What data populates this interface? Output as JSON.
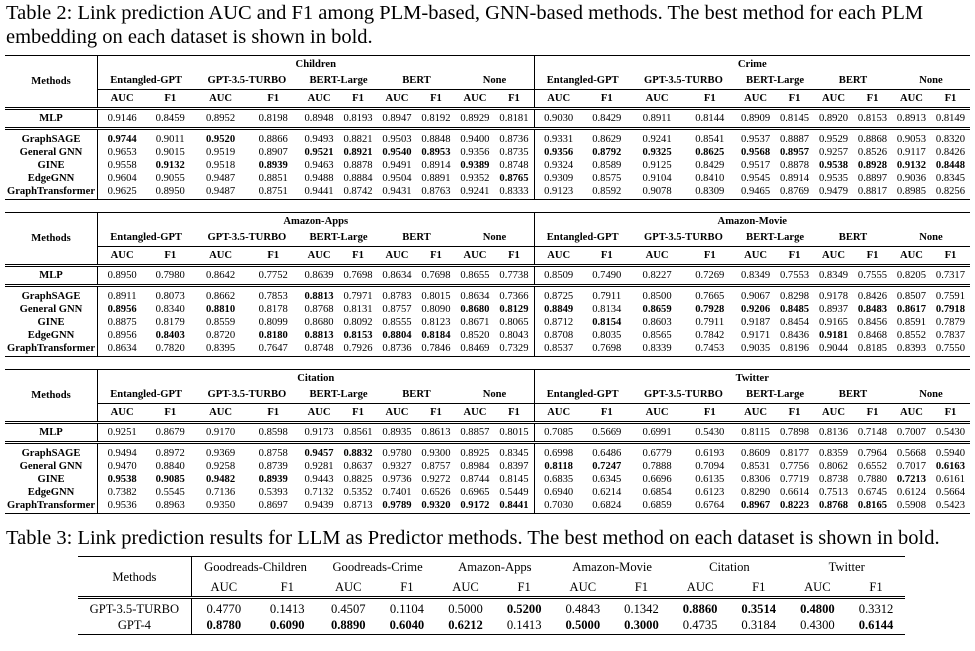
{
  "table2": {
    "caption_label": "Table 2:",
    "caption_text": "Link prediction AUC and F1 among PLM-based, GNN-based methods. The best method for each PLM embedding on each dataset is shown in bold.",
    "methods_header": "Methods",
    "embeddings": [
      "Entangled-GPT",
      "GPT-3.5-TURBO",
      "BERT-Large",
      "BERT",
      "None"
    ],
    "metrics": [
      "AUC",
      "F1"
    ],
    "blocks": [
      {
        "datasets": [
          "Children",
          "Crime"
        ],
        "rows": [
          {
            "method": "MLP",
            "values": [
              "0.9146",
              "0.8459",
              "0.8952",
              "0.8198",
              "0.8948",
              "0.8193",
              "0.8947",
              "0.8192",
              "0.8929",
              "0.8181",
              "0.9030",
              "0.8429",
              "0.8911",
              "0.8144",
              "0.8909",
              "0.8145",
              "0.8920",
              "0.8153",
              "0.8913",
              "0.8149"
            ],
            "bold": []
          },
          {
            "method": "GraphSAGE",
            "values": [
              "0.9744",
              "0.9011",
              "0.9520",
              "0.8866",
              "0.9493",
              "0.8821",
              "0.9503",
              "0.8848",
              "0.9400",
              "0.8736",
              "0.9331",
              "0.8629",
              "0.9241",
              "0.8541",
              "0.9537",
              "0.8887",
              "0.9529",
              "0.8868",
              "0.9053",
              "0.8320"
            ],
            "bold": [
              0,
              2
            ]
          },
          {
            "method": "General GNN",
            "values": [
              "0.9653",
              "0.9015",
              "0.9519",
              "0.8907",
              "0.9521",
              "0.8921",
              "0.9540",
              "0.8953",
              "0.9356",
              "0.8735",
              "0.9356",
              "0.8792",
              "0.9325",
              "0.8625",
              "0.9568",
              "0.8957",
              "0.9257",
              "0.8526",
              "0.9117",
              "0.8426"
            ],
            "bold": [
              4,
              5,
              6,
              7,
              10,
              11,
              12,
              13,
              14,
              15
            ]
          },
          {
            "method": "GINE",
            "values": [
              "0.9558",
              "0.9132",
              "0.9518",
              "0.8939",
              "0.9463",
              "0.8878",
              "0.9491",
              "0.8914",
              "0.9389",
              "0.8748",
              "0.9324",
              "0.8589",
              "0.9125",
              "0.8429",
              "0.9517",
              "0.8878",
              "0.9538",
              "0.8928",
              "0.9132",
              "0.8448"
            ],
            "bold": [
              1,
              3,
              8,
              16,
              17,
              18,
              19
            ]
          },
          {
            "method": "EdgeGNN",
            "values": [
              "0.9604",
              "0.9055",
              "0.9487",
              "0.8851",
              "0.9488",
              "0.8884",
              "0.9504",
              "0.8891",
              "0.9352",
              "0.8765",
              "0.9309",
              "0.8575",
              "0.9104",
              "0.8410",
              "0.9545",
              "0.8914",
              "0.9535",
              "0.8897",
              "0.9036",
              "0.8345"
            ],
            "bold": [
              9
            ]
          },
          {
            "method": "GraphTransformer",
            "values": [
              "0.9625",
              "0.8950",
              "0.9487",
              "0.8751",
              "0.9441",
              "0.8742",
              "0.9431",
              "0.8763",
              "0.9241",
              "0.8333",
              "0.9123",
              "0.8592",
              "0.9078",
              "0.8309",
              "0.9465",
              "0.8769",
              "0.9479",
              "0.8817",
              "0.8985",
              "0.8256"
            ],
            "bold": []
          }
        ]
      },
      {
        "datasets": [
          "Amazon-Apps",
          "Amazon-Movie"
        ],
        "rows": [
          {
            "method": "MLP",
            "values": [
              "0.8950",
              "0.7980",
              "0.8642",
              "0.7752",
              "0.8639",
              "0.7698",
              "0.8634",
              "0.7698",
              "0.8655",
              "0.7738",
              "0.8509",
              "0.7490",
              "0.8227",
              "0.7269",
              "0.8349",
              "0.7553",
              "0.8349",
              "0.7555",
              "0.8205",
              "0.7317"
            ],
            "bold": []
          },
          {
            "method": "GraphSAGE",
            "values": [
              "0.8911",
              "0.8073",
              "0.8662",
              "0.7853",
              "0.8813",
              "0.7971",
              "0.8783",
              "0.8015",
              "0.8634",
              "0.7366",
              "0.8725",
              "0.7911",
              "0.8500",
              "0.7665",
              "0.9067",
              "0.8298",
              "0.9178",
              "0.8426",
              "0.8507",
              "0.7591"
            ],
            "bold": [
              4
            ]
          },
          {
            "method": "General GNN",
            "values": [
              "0.8956",
              "0.8340",
              "0.8810",
              "0.8178",
              "0.8768",
              "0.8131",
              "0.8757",
              "0.8090",
              "0.8680",
              "0.8129",
              "0.8849",
              "0.8134",
              "0.8659",
              "0.7928",
              "0.9206",
              "0.8485",
              "0.8937",
              "0.8483",
              "0.8617",
              "0.7918"
            ],
            "bold": [
              0,
              2,
              8,
              9,
              10,
              12,
              13,
              14,
              15,
              17,
              18,
              19
            ]
          },
          {
            "method": "GINE",
            "values": [
              "0.8875",
              "0.8179",
              "0.8559",
              "0.8099",
              "0.8680",
              "0.8092",
              "0.8555",
              "0.8123",
              "0.8671",
              "0.8065",
              "0.8712",
              "0.8154",
              "0.8603",
              "0.7911",
              "0.9187",
              "0.8454",
              "0.9165",
              "0.8456",
              "0.8591",
              "0.7879"
            ],
            "bold": [
              11
            ]
          },
          {
            "method": "EdgeGNN",
            "values": [
              "0.8956",
              "0.8403",
              "0.8720",
              "0.8180",
              "0.8813",
              "0.8153",
              "0.8804",
              "0.8184",
              "0.8520",
              "0.8043",
              "0.8708",
              "0.8035",
              "0.8565",
              "0.7842",
              "0.9171",
              "0.8436",
              "0.9181",
              "0.8468",
              "0.8552",
              "0.7837"
            ],
            "bold": [
              1,
              3,
              4,
              5,
              6,
              7,
              16
            ]
          },
          {
            "method": "GraphTransformer",
            "values": [
              "0.8634",
              "0.7820",
              "0.8395",
              "0.7647",
              "0.8748",
              "0.7926",
              "0.8736",
              "0.7846",
              "0.8469",
              "0.7329",
              "0.8537",
              "0.7698",
              "0.8339",
              "0.7453",
              "0.9035",
              "0.8196",
              "0.9044",
              "0.8185",
              "0.8393",
              "0.7550"
            ],
            "bold": []
          }
        ]
      },
      {
        "datasets": [
          "Citation",
          "Twitter"
        ],
        "rows": [
          {
            "method": "MLP",
            "values": [
              "0.9251",
              "0.8679",
              "0.9170",
              "0.8598",
              "0.9173",
              "0.8561",
              "0.8935",
              "0.8613",
              "0.8857",
              "0.8015",
              "0.7085",
              "0.5669",
              "0.6991",
              "0.5430",
              "0.8115",
              "0.7898",
              "0.8136",
              "0.7148",
              "0.7007",
              "0.5430"
            ],
            "bold": []
          },
          {
            "method": "GraphSAGE",
            "values": [
              "0.9494",
              "0.8972",
              "0.9369",
              "0.8758",
              "0.9457",
              "0.8832",
              "0.9780",
              "0.9300",
              "0.8925",
              "0.8345",
              "0.6998",
              "0.6486",
              "0.6779",
              "0.6193",
              "0.8609",
              "0.8177",
              "0.8359",
              "0.7964",
              "0.5668",
              "0.5940"
            ],
            "bold": [
              4,
              5
            ]
          },
          {
            "method": "General GNN",
            "values": [
              "0.9470",
              "0.8840",
              "0.9258",
              "0.8739",
              "0.9281",
              "0.8637",
              "0.9327",
              "0.8757",
              "0.8984",
              "0.8397",
              "0.8118",
              "0.7247",
              "0.7888",
              "0.7094",
              "0.8531",
              "0.7756",
              "0.8062",
              "0.6552",
              "0.7017",
              "0.6163"
            ],
            "bold": [
              10,
              11,
              19
            ]
          },
          {
            "method": "GINE",
            "values": [
              "0.9538",
              "0.9085",
              "0.9482",
              "0.8939",
              "0.9443",
              "0.8825",
              "0.9736",
              "0.9272",
              "0.8744",
              "0.8145",
              "0.6835",
              "0.6345",
              "0.6696",
              "0.6135",
              "0.8306",
              "0.7719",
              "0.8738",
              "0.7880",
              "0.7213",
              "0.6161"
            ],
            "bold": [
              0,
              1,
              2,
              3,
              18
            ]
          },
          {
            "method": "EdgeGNN",
            "values": [
              "0.7382",
              "0.5545",
              "0.7136",
              "0.5393",
              "0.7132",
              "0.5352",
              "0.7401",
              "0.6526",
              "0.6965",
              "0.5449",
              "0.6940",
              "0.6214",
              "0.6854",
              "0.6123",
              "0.8290",
              "0.6614",
              "0.7513",
              "0.6745",
              "0.6124",
              "0.5664"
            ],
            "bold": []
          },
          {
            "method": "GraphTransformer",
            "values": [
              "0.9536",
              "0.8963",
              "0.9350",
              "0.8697",
              "0.9439",
              "0.8713",
              "0.9789",
              "0.9320",
              "0.9172",
              "0.8441",
              "0.7030",
              "0.6824",
              "0.6859",
              "0.6764",
              "0.8967",
              "0.8223",
              "0.8768",
              "0.8165",
              "0.5908",
              "0.5423"
            ],
            "bold": [
              6,
              7,
              8,
              9,
              14,
              15,
              16,
              17
            ]
          }
        ]
      }
    ]
  },
  "table3": {
    "caption_label": "Table 3:",
    "caption_text": "Link prediction results for LLM as Predictor methods. The best method on each dataset is shown in bold.",
    "methods_header": "Methods",
    "datasets": [
      "Goodreads-Children",
      "Goodreads-Crime",
      "Amazon-Apps",
      "Amazon-Movie",
      "Citation",
      "Twitter"
    ],
    "metrics": [
      "AUC",
      "F1"
    ],
    "rows": [
      {
        "method": "GPT-3.5-TURBO",
        "values": [
          "0.4770",
          "0.1413",
          "0.4507",
          "0.1104",
          "0.5000",
          "0.5200",
          "0.4843",
          "0.1342",
          "0.8860",
          "0.3514",
          "0.4800",
          "0.3312"
        ],
        "bold": [
          5,
          8,
          9,
          10
        ]
      },
      {
        "method": "GPT-4",
        "values": [
          "0.8780",
          "0.6090",
          "0.8890",
          "0.6040",
          "0.6212",
          "0.1413",
          "0.5000",
          "0.3000",
          "0.4735",
          "0.3184",
          "0.4300",
          "0.6144"
        ],
        "bold": [
          0,
          1,
          2,
          3,
          4,
          6,
          7,
          11
        ]
      }
    ]
  }
}
